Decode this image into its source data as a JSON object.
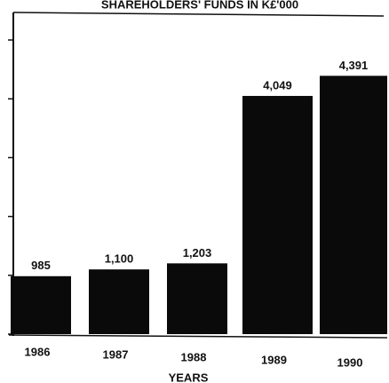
{
  "chart_data": {
    "type": "bar",
    "title": "SHAREHOLDERS' FUNDS IN K£'000",
    "x_label": "YEARS",
    "categories": [
      "1986",
      "1987",
      "1988",
      "1989",
      "1990"
    ],
    "values": [
      985,
      1100,
      1203,
      4049,
      4391
    ],
    "value_labels": [
      "985",
      "1,100",
      "1,203",
      "4,049",
      "4,391"
    ],
    "color": "#0a0a0a",
    "ylim": [
      0,
      5000
    ],
    "yticks": [
      0,
      1000,
      2000,
      3000,
      4000,
      5000
    ],
    "grid": false
  }
}
